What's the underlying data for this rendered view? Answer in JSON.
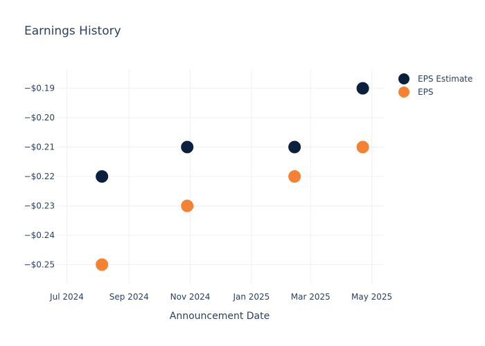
{
  "chart_data": {
    "type": "scatter",
    "title": "Earnings History",
    "xlabel": "Announcement Date",
    "ylabel": "",
    "x_ticks": [
      {
        "date": "2024-07-01",
        "label": "Jul 2024"
      },
      {
        "date": "2024-09-01",
        "label": "Sep 2024"
      },
      {
        "date": "2024-11-01",
        "label": "Nov 2024"
      },
      {
        "date": "2025-01-01",
        "label": "Jan 2025"
      },
      {
        "date": "2025-03-01",
        "label": "Mar 2025"
      },
      {
        "date": "2025-05-01",
        "label": "May 2025"
      }
    ],
    "y_ticks": [
      {
        "value": -0.19,
        "label": "−$0.19"
      },
      {
        "value": -0.2,
        "label": "−$0.20"
      },
      {
        "value": -0.21,
        "label": "−$0.21"
      },
      {
        "value": -0.22,
        "label": "−$0.22"
      },
      {
        "value": -0.23,
        "label": "−$0.23"
      },
      {
        "value": -0.24,
        "label": "−$0.24"
      },
      {
        "value": -0.25,
        "label": "−$0.25"
      }
    ],
    "xlim": [
      "2024-06-21",
      "2025-05-13"
    ],
    "ylim": [
      -0.2565,
      -0.1835
    ],
    "grid": true,
    "legend_position": "top-right",
    "series": [
      {
        "name": "EPS Estimate",
        "color": "#0b1f3f",
        "points": [
          {
            "x": "2024-08-05",
            "y": -0.22
          },
          {
            "x": "2024-10-29",
            "y": -0.21
          },
          {
            "x": "2025-02-13",
            "y": -0.21
          },
          {
            "x": "2025-04-22",
            "y": -0.19
          }
        ]
      },
      {
        "name": "EPS",
        "color": "#f58233",
        "points": [
          {
            "x": "2024-08-05",
            "y": -0.25
          },
          {
            "x": "2024-10-29",
            "y": -0.23
          },
          {
            "x": "2025-02-13",
            "y": -0.22
          },
          {
            "x": "2025-04-22",
            "y": -0.21
          }
        ]
      }
    ]
  }
}
